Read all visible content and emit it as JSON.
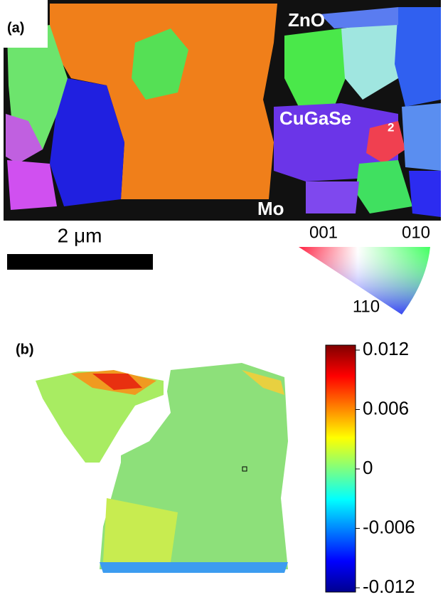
{
  "panel_a": {
    "label": "(a)",
    "phases": {
      "top": "ZnO",
      "middle": {
        "text": "CuGaSe",
        "subscript": "2"
      },
      "bottom": "Mo"
    },
    "scale_bar": "2 μm",
    "color_key": {
      "corner_left": "001",
      "corner_right": "010",
      "corner_bottom": "110"
    }
  },
  "panel_b": {
    "label": "(b)",
    "colorbar": {
      "lim": [
        -0.012,
        0.012
      ],
      "ticks": [
        0.012,
        0.006,
        0,
        -0.006,
        -0.012
      ]
    }
  }
}
